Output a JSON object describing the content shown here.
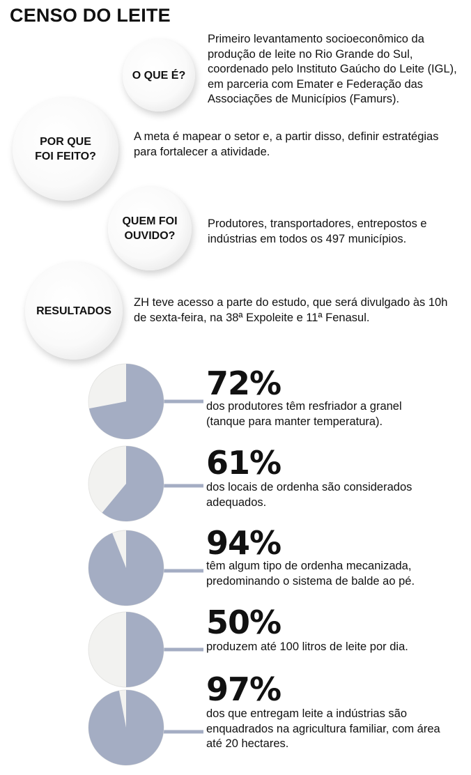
{
  "title": "CENSO DO LEITE",
  "qa": [
    {
      "question": "O QUE É?",
      "answer": "Primeiro levantamento socioeconômico da produção de leite no Rio Grande do Sul, coordenado pelo Instituto Gaúcho do Leite (IGL), em parceria com Emater e Federação das Associações de Municípios (Famurs)."
    },
    {
      "question": "POR QUE\nFOI FEITO?",
      "answer": "A meta é mapear o setor e, a partir disso, definir estratégias para fortalecer a atividade."
    },
    {
      "question": "QUEM FOI\nOUVIDO?",
      "answer": "Produtores, transportadores, entrepostos e indústrias em todos os 497 municípios."
    },
    {
      "question": "RESULTADOS",
      "answer": "ZH teve acesso a parte do estudo, que será divulgado às 10h de sexta-feira, na 38ª Expoleite e 11ª Fenasul."
    }
  ],
  "colors": {
    "filled": "#a4adc3",
    "empty": "#f2f2f0",
    "connector": "#a4adc3"
  },
  "chart_data": [
    {
      "type": "pie",
      "label": "72%",
      "values": [
        72,
        28
      ],
      "description": "dos produtores têm resfriador a granel (tanque para manter temperatura)."
    },
    {
      "type": "pie",
      "label": "61%",
      "values": [
        61,
        39
      ],
      "description": "dos locais de ordenha são considerados adequados."
    },
    {
      "type": "pie",
      "label": "94%",
      "values": [
        94,
        6
      ],
      "description": "têm algum tipo de ordenha mecanizada, predominando o sistema de balde ao pé."
    },
    {
      "type": "pie",
      "label": "50%",
      "values": [
        50,
        50
      ],
      "description": "produzem até 100 litros de leite por dia."
    },
    {
      "type": "pie",
      "label": "97%",
      "values": [
        97,
        3
      ],
      "description": "dos que entregam leite a indústrias são enquadrados na agricultura familiar, com área até 20 hectares."
    }
  ]
}
